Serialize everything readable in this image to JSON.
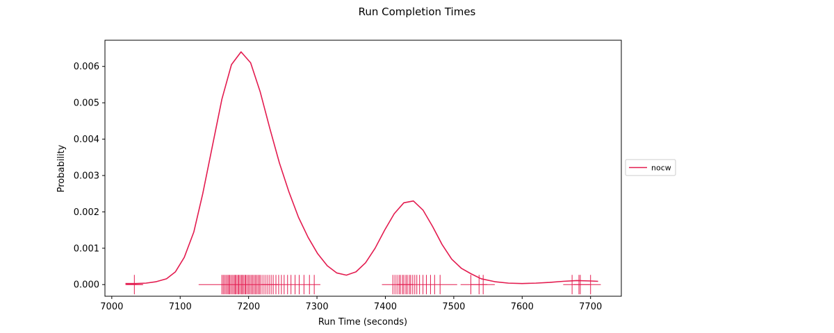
{
  "chart_data": {
    "type": "line",
    "title": "Run Completion Times",
    "xlabel": "Run Time (seconds)",
    "ylabel": "Probability",
    "xlim": [
      6990,
      7745
    ],
    "ylim": [
      -0.00032,
      0.00672
    ],
    "xticks": [
      7000,
      7100,
      7200,
      7300,
      7400,
      7500,
      7600,
      7700
    ],
    "xtick_labels": [
      "7000",
      "7100",
      "7200",
      "7300",
      "7400",
      "7500",
      "7600",
      "7700"
    ],
    "yticks": [
      0.0,
      0.001,
      0.002,
      0.003,
      0.004,
      0.005,
      0.006
    ],
    "ytick_labels": [
      "0.000",
      "0.001",
      "0.002",
      "0.003",
      "0.004",
      "0.005",
      "0.006"
    ],
    "legend_position": "right-outside",
    "grid": false,
    "series": [
      {
        "name": "nocw",
        "color": "#e31a4e",
        "x": [
          7020,
          7035,
          7050,
          7065,
          7080,
          7093,
          7106,
          7120,
          7133,
          7147,
          7161,
          7175,
          7189,
          7203,
          7217,
          7231,
          7245,
          7259,
          7273,
          7287,
          7301,
          7315,
          7329,
          7343,
          7357,
          7371,
          7385,
          7399,
          7413,
          7427,
          7441,
          7455,
          7469,
          7483,
          7497,
          7511,
          7525,
          7540,
          7560,
          7580,
          7600,
          7620,
          7640,
          7660,
          7680,
          7700,
          7711
        ],
        "y": [
          3e-05,
          3e-05,
          4e-05,
          8e-05,
          0.00016,
          0.00035,
          0.00075,
          0.00145,
          0.0025,
          0.0038,
          0.0051,
          0.00605,
          0.0064,
          0.0061,
          0.0053,
          0.0043,
          0.00335,
          0.00255,
          0.00185,
          0.0013,
          0.00085,
          0.00052,
          0.00032,
          0.00026,
          0.00035,
          0.0006,
          0.001,
          0.0015,
          0.00195,
          0.00225,
          0.0023,
          0.00205,
          0.0016,
          0.0011,
          0.0007,
          0.00045,
          0.0003,
          0.00016,
          8e-05,
          4e-05,
          3e-05,
          4e-05,
          6e-05,
          9e-05,
          0.00011,
          0.0001,
          9e-05
        ]
      }
    ],
    "rug": {
      "color": "#e31a4e",
      "samples": [
        7033,
        7161,
        7163,
        7165,
        7167,
        7169,
        7171,
        7172,
        7174,
        7176,
        7178,
        7180,
        7181,
        7183,
        7185,
        7186,
        7188,
        7190,
        7191,
        7193,
        7195,
        7196,
        7198,
        7200,
        7202,
        7204,
        7206,
        7208,
        7210,
        7212,
        7214,
        7216,
        7218,
        7221,
        7224,
        7227,
        7230,
        7233,
        7236,
        7240,
        7244,
        7248,
        7252,
        7257,
        7262,
        7268,
        7274,
        7281,
        7289,
        7296,
        7411,
        7414,
        7417,
        7420,
        7422,
        7425,
        7427,
        7430,
        7432,
        7435,
        7437,
        7440,
        7443,
        7446,
        7450,
        7455,
        7460,
        7466,
        7472,
        7480,
        7525,
        7537,
        7543,
        7673,
        7683,
        7685,
        7700
      ],
      "kde_bar_centers": [
        7033,
        7231,
        7429,
        7537,
        7687
      ]
    }
  }
}
